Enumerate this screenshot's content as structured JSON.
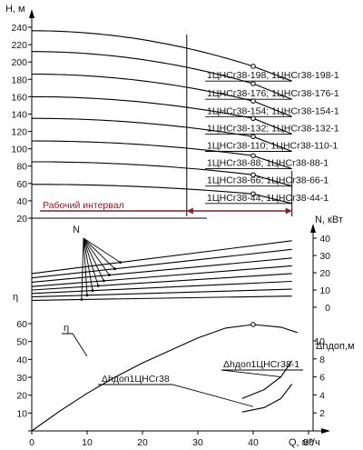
{
  "chart_data": {
    "type": "line",
    "x_axis": {
      "label": "Q, м³/ч",
      "range": [
        0,
        50
      ],
      "ticks": [
        "0",
        "10",
        "20",
        "30",
        "40",
        "50"
      ]
    },
    "head_panel": {
      "axis_label": "H, м",
      "range": [
        20,
        240
      ],
      "ticks": [
        "20",
        "40",
        "60",
        "80",
        "100",
        "120",
        "140",
        "160",
        "180",
        "200",
        "220",
        "240"
      ],
      "working_interval": {
        "label": "Рабочий интервал",
        "range": [
          28,
          47
        ]
      },
      "series": [
        {
          "name": "1ЦНСг38-198, 1ЦНСг38-198-1",
          "shutoff": 236,
          "design_point": [
            40,
            195
          ],
          "end": [
            47,
            178
          ]
        },
        {
          "name": "1ЦНСг38-176; 1ЦНСг38-176-1",
          "shutoff": 212,
          "design_point": [
            40,
            175
          ],
          "end": [
            47,
            157
          ]
        },
        {
          "name": "1ЦНСг38-154; 1ЦНСг38-154-1",
          "shutoff": 186,
          "design_point": [
            40,
            155
          ],
          "end": [
            47,
            137
          ]
        },
        {
          "name": "1ЦНСг38-132; 1ЦНСг38-132-1",
          "shutoff": 160,
          "design_point": [
            40,
            135
          ],
          "end": [
            47,
            117
          ]
        },
        {
          "name": "1ЦНСг38-110; 1ЦНСг38-110-1",
          "shutoff": 135,
          "design_point": [
            40,
            114
          ],
          "end": [
            47,
            97
          ]
        },
        {
          "name": "1ЦНСг38-88; 1ЦНСг38-88-1",
          "shutoff": 109,
          "design_point": [
            40,
            92
          ],
          "end": [
            47,
            77
          ]
        },
        {
          "name": "1ЦНСг38-66; 1ЦНСг38-66-1",
          "shutoff": 85,
          "design_point": [
            40,
            70
          ],
          "end": [
            47,
            57
          ]
        },
        {
          "name": "1ЦНСг38-44; 1ЦНСг38-44-1",
          "shutoff": 59,
          "design_point": [
            40,
            48
          ],
          "end": [
            47,
            37
          ]
        }
      ]
    },
    "power_panel": {
      "axis_label": "N, кВт",
      "marker": "N",
      "range": [
        0,
        40
      ],
      "ticks": [
        "0",
        "10",
        "20",
        "30",
        "40"
      ],
      "series": [
        {
          "start": 19.5,
          "end": 38.5
        },
        {
          "start": 17.0,
          "end": 33.5
        },
        {
          "start": 14.5,
          "end": 28.5
        },
        {
          "start": 12.0,
          "end": 24.0
        },
        {
          "start": 10.0,
          "end": 19.5
        },
        {
          "start": 8.0,
          "end": 15.0
        },
        {
          "start": 6.0,
          "end": 10.5
        },
        {
          "start": 4.0,
          "end": 6.5
        }
      ]
    },
    "efficiency_panel": {
      "axis_label": "η",
      "curve_label": "η",
      "range": [
        0,
        60
      ],
      "ticks": [
        "0",
        "10",
        "20",
        "30",
        "40",
        "50",
        "60"
      ],
      "points": [
        [
          0,
          0
        ],
        [
          5,
          11
        ],
        [
          10,
          21
        ],
        [
          15,
          30
        ],
        [
          20,
          38
        ],
        [
          25,
          45
        ],
        [
          30,
          52
        ],
        [
          35,
          57.5
        ],
        [
          40,
          59.5
        ],
        [
          45,
          58
        ],
        [
          48,
          55
        ]
      ],
      "max_point": [
        40,
        59.5
      ]
    },
    "npsh_panel": {
      "axis_label": "Δhдоп,м",
      "range": [
        0,
        10
      ],
      "ticks": [
        "2",
        "4",
        "6",
        "8",
        "10"
      ],
      "series": [
        {
          "name": "Δhдоп1ЦНСг38",
          "points": [
            [
              38,
              2.1
            ],
            [
              42,
              2.6
            ],
            [
              45,
              3.6
            ],
            [
              47,
              5.2
            ]
          ]
        },
        {
          "name": "Δhдоп1ЦНСг38-1",
          "points": [
            [
              38,
              3.6
            ],
            [
              42,
              4.6
            ],
            [
              45,
              6.0
            ],
            [
              47,
              7.8
            ]
          ]
        }
      ]
    }
  }
}
